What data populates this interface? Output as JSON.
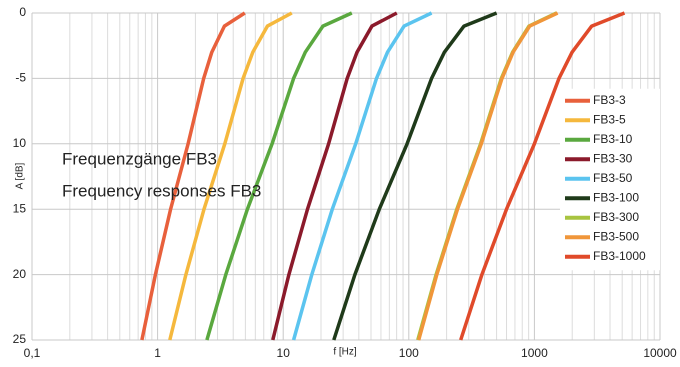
{
  "chart_data": {
    "type": "line",
    "annotations": [
      "Frequenzgänge FB3",
      "Frequency responses FB3"
    ],
    "xlabel": "f [Hz]",
    "ylabel": "A [dB]",
    "xscale": "log",
    "grid": true,
    "legend": "right",
    "xlim": [
      0.1,
      10000
    ],
    "xticks": [
      {
        "value": 0.1,
        "label": "0,1"
      },
      1,
      10,
      100,
      1000,
      10000
    ],
    "ylim": [
      -25,
      0
    ],
    "yticks": [
      0,
      -5,
      {
        "value": -10,
        "label": "10"
      },
      {
        "value": -15,
        "label": "15"
      },
      {
        "value": -20,
        "label": "20"
      },
      {
        "value": -25,
        "label": "25"
      }
    ],
    "series": [
      {
        "name": "FB3-3",
        "color": "#e8603c",
        "x": [
          0.75,
          0.96,
          1.27,
          1.75,
          2.33,
          2.7,
          3.4,
          4.95
        ],
        "values": [
          -25,
          -20,
          -15,
          -10,
          -5,
          -3,
          -1,
          0
        ]
      },
      {
        "name": "FB3-5",
        "color": "#f5b83d",
        "x": [
          1.25,
          1.68,
          2.34,
          3.43,
          4.79,
          5.73,
          7.48,
          11.7
        ],
        "values": [
          -25,
          -20,
          -15,
          -10,
          -5,
          -3,
          -1,
          0
        ]
      },
      {
        "name": "FB3-10",
        "color": "#5aa83f",
        "x": [
          2.47,
          3.49,
          5.19,
          8.16,
          12.1,
          15.0,
          20.7,
          35.2
        ],
        "values": [
          -25,
          -20,
          -15,
          -10,
          -5,
          -3,
          -1,
          0
        ]
      },
      {
        "name": "FB3-30",
        "color": "#8b1a2b",
        "x": [
          8.26,
          11.1,
          15.6,
          23.0,
          32.3,
          38.7,
          50.8,
          80.2
        ],
        "values": [
          -25,
          -20,
          -15,
          -10,
          -5,
          -3,
          -1,
          0
        ]
      },
      {
        "name": "FB3-50",
        "color": "#5bc4ef",
        "x": [
          12.1,
          16.9,
          24.6,
          37.8,
          55.3,
          67.7,
          91.8,
          152
        ],
        "values": [
          -25,
          -20,
          -15,
          -10,
          -5,
          -3,
          -1,
          0
        ]
      },
      {
        "name": "FB3-100",
        "color": "#1f3a1a",
        "x": [
          25.3,
          37.2,
          58.2,
          96.9,
          152,
          192,
          275,
          500
        ],
        "values": [
          -25,
          -20,
          -15,
          -10,
          -5,
          -3,
          -1,
          0
        ]
      },
      {
        "name": "FB3-300",
        "color": "#a8c440",
        "x": [
          118,
          165,
          241,
          373,
          545,
          670,
          905,
          1500
        ],
        "values": [
          -25,
          -20,
          -15,
          -10,
          -5,
          -3,
          -1,
          0
        ]
      },
      {
        "name": "FB3-500",
        "color": "#f0963a",
        "x": [
          120,
          167,
          244,
          378,
          552,
          677,
          918,
          1530
        ],
        "values": [
          -25,
          -20,
          -15,
          -10,
          -5,
          -3,
          -1,
          0
        ]
      },
      {
        "name": "FB3-1000",
        "color": "#e04a2a",
        "x": [
          259,
          382,
          600,
          1000,
          1570,
          1995,
          2860,
          5220
        ],
        "values": [
          -25,
          -20,
          -15,
          -10,
          -5,
          -3,
          -1,
          0
        ]
      }
    ]
  }
}
